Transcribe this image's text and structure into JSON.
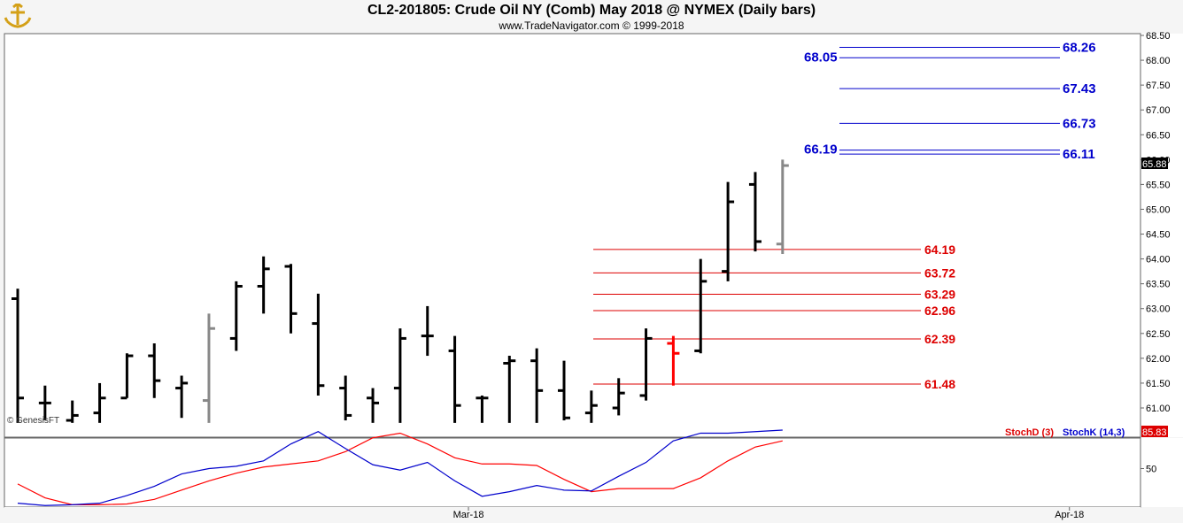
{
  "header": {
    "title": "CL2-201805:  Crude Oil NY (Comb) May 2018 @ NYMEX  (Daily bars)",
    "subtitle": "www.TradeNavigator.com © 1999-2018",
    "logo_icon": "anchor-trident-logo"
  },
  "watermark": "© GenesisFT",
  "colors": {
    "bar": "#000000",
    "bar_gray": "#888888",
    "bar_red": "#ff0000",
    "blue_level": "#0000cc",
    "red_level": "#dd0000",
    "stochD": "#dd0000",
    "stochK": "#0000cc",
    "price_tag_bg": "#000000",
    "stoch_tag_bg": "#dd0000"
  },
  "chart_data": [
    {
      "type": "ohlc",
      "title": "CL2-201805:  Crude Oil NY (Comb) May 2018 @ NYMEX  (Daily bars)",
      "y_ticks": [
        "68.50",
        "68.00",
        "67.50",
        "67.00",
        "66.50",
        "66.00",
        "65.50",
        "65.00",
        "64.50",
        "64.00",
        "63.50",
        "63.00",
        "62.50",
        "62.00",
        "61.50",
        "61.00"
      ],
      "ylim": [
        60.6,
        68.6
      ],
      "x_ticks": [
        {
          "label": "Mar-18",
          "index": 16.5
        },
        {
          "label": "Apr-18",
          "index": 38.5
        }
      ],
      "last_price_label": "65.88",
      "bars": [
        {
          "o": 63.2,
          "h": 63.4,
          "l": 60.7,
          "c": 61.2,
          "color": "black"
        },
        {
          "o": 61.1,
          "h": 61.45,
          "l": 60.75,
          "c": 61.1,
          "color": "black"
        },
        {
          "o": 60.75,
          "h": 61.15,
          "l": 60.7,
          "c": 60.85,
          "color": "black"
        },
        {
          "o": 60.9,
          "h": 61.5,
          "l": 60.7,
          "c": 61.2,
          "color": "black"
        },
        {
          "o": 61.2,
          "h": 62.1,
          "l": 61.2,
          "c": 62.05,
          "color": "black"
        },
        {
          "o": 62.05,
          "h": 62.3,
          "l": 61.2,
          "c": 61.55,
          "color": "black"
        },
        {
          "o": 61.4,
          "h": 61.65,
          "l": 60.8,
          "c": 61.5,
          "color": "black"
        },
        {
          "o": 61.15,
          "h": 62.9,
          "l": 60.7,
          "c": 62.6,
          "color": "gray"
        },
        {
          "o": 62.4,
          "h": 63.55,
          "l": 62.15,
          "c": 63.45,
          "color": "black"
        },
        {
          "o": 63.45,
          "h": 64.05,
          "l": 62.9,
          "c": 63.8,
          "color": "black"
        },
        {
          "o": 63.85,
          "h": 63.9,
          "l": 62.5,
          "c": 62.9,
          "color": "black"
        },
        {
          "o": 62.7,
          "h": 63.3,
          "l": 61.25,
          "c": 61.45,
          "color": "black"
        },
        {
          "o": 61.4,
          "h": 61.65,
          "l": 60.75,
          "c": 60.85,
          "color": "black"
        },
        {
          "o": 61.2,
          "h": 61.4,
          "l": 60.7,
          "c": 61.1,
          "color": "black"
        },
        {
          "o": 61.4,
          "h": 62.6,
          "l": 60.7,
          "c": 62.4,
          "color": "black"
        },
        {
          "o": 62.45,
          "h": 63.05,
          "l": 62.05,
          "c": 62.45,
          "color": "black"
        },
        {
          "o": 62.15,
          "h": 62.45,
          "l": 60.7,
          "c": 61.05,
          "color": "black"
        },
        {
          "o": 61.2,
          "h": 61.25,
          "l": 60.7,
          "c": 61.2,
          "color": "black"
        },
        {
          "o": 61.9,
          "h": 62.05,
          "l": 60.7,
          "c": 61.95,
          "color": "black"
        },
        {
          "o": 61.95,
          "h": 62.2,
          "l": 60.7,
          "c": 61.35,
          "color": "black"
        },
        {
          "o": 61.35,
          "h": 61.95,
          "l": 60.75,
          "c": 60.8,
          "color": "black"
        },
        {
          "o": 60.9,
          "h": 61.35,
          "l": 60.7,
          "c": 61.05,
          "color": "black"
        },
        {
          "o": 61.0,
          "h": 61.6,
          "l": 60.85,
          "c": 61.3,
          "color": "black"
        },
        {
          "o": 61.25,
          "h": 62.6,
          "l": 61.15,
          "c": 62.4,
          "color": "black"
        },
        {
          "o": 62.3,
          "h": 62.45,
          "l": 61.45,
          "c": 62.1,
          "color": "red"
        },
        {
          "o": 62.15,
          "h": 64.0,
          "l": 62.1,
          "c": 63.55,
          "color": "black"
        },
        {
          "o": 63.75,
          "h": 65.55,
          "l": 63.55,
          "c": 65.15,
          "color": "black"
        },
        {
          "o": 65.5,
          "h": 65.75,
          "l": 64.15,
          "c": 64.35,
          "color": "black"
        },
        {
          "o": 64.3,
          "h": 66.0,
          "l": 64.1,
          "c": 65.88,
          "color": "gray"
        }
      ],
      "levels_blue": [
        {
          "value": 68.26,
          "label": "68.26"
        },
        {
          "value": 68.05,
          "label": "68.05"
        },
        {
          "value": 67.43,
          "label": "67.43"
        },
        {
          "value": 66.73,
          "label": "66.73"
        },
        {
          "value": 66.19,
          "label": "66.19"
        },
        {
          "value": 66.11,
          "label": "66.11"
        }
      ],
      "levels_red": [
        {
          "value": 64.19,
          "label": "64.19"
        },
        {
          "value": 63.72,
          "label": "63.72"
        },
        {
          "value": 63.29,
          "label": "63.29"
        },
        {
          "value": 62.96,
          "label": "62.96"
        },
        {
          "value": 62.39,
          "label": "62.39"
        },
        {
          "value": 61.48,
          "label": "61.48"
        }
      ]
    },
    {
      "type": "line",
      "ylim": [
        0,
        100
      ],
      "y_ticks": [
        "50"
      ],
      "last_value_label": "85.83",
      "legend": [
        "StochD (3)",
        "StochK (14,3)"
      ],
      "series": [
        {
          "name": "StochD (3)",
          "color": "red",
          "values": [
            30,
            12,
            3,
            3,
            4,
            10,
            22,
            34,
            44,
            52,
            56,
            60,
            72,
            90,
            96,
            82,
            64,
            56,
            56,
            54,
            36,
            20,
            24,
            24,
            24,
            38,
            60,
            78,
            86
          ]
        },
        {
          "name": "StochK (14,3)",
          "color": "blue",
          "values": [
            5,
            2,
            3,
            5,
            15,
            27,
            43,
            50,
            53,
            60,
            82,
            98,
            76,
            55,
            48,
            58,
            34,
            14,
            20,
            28,
            22,
            21,
            40,
            58,
            86,
            96,
            96,
            98,
            100
          ]
        }
      ]
    }
  ]
}
